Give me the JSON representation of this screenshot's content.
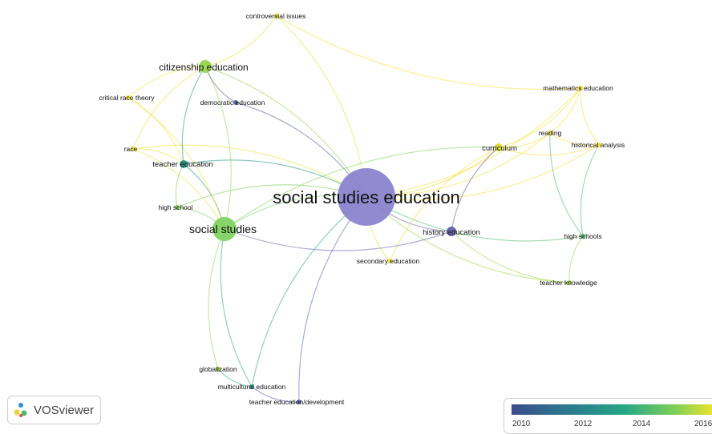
{
  "nodes": [
    {
      "id": "sse",
      "label": "social studies education",
      "color": "#8b84cf",
      "weight": 5
    },
    {
      "id": "ss",
      "label": "social studies",
      "color": "#86d46a",
      "weight": 4
    },
    {
      "id": "ce",
      "label": "citizenship education",
      "color": "#9ad658",
      "weight": 3
    },
    {
      "id": "he",
      "label": "history education",
      "color": "#6a66aa",
      "weight": 2
    },
    {
      "id": "te",
      "label": "teacher education",
      "color": "#2a9a86",
      "weight": 2
    },
    {
      "id": "cur",
      "label": "curriculum",
      "color": "#e3df3c",
      "weight": 2
    },
    {
      "id": "ci",
      "label": "controversial issues",
      "color": "#e8e33a",
      "weight": 1
    },
    {
      "id": "de",
      "label": "democratic education",
      "color": "#5f6aa6",
      "weight": 1
    },
    {
      "id": "crt",
      "label": "critical race theory",
      "color": "#f0e53a",
      "weight": 1
    },
    {
      "id": "race",
      "label": "race",
      "color": "#e9e33a",
      "weight": 1
    },
    {
      "id": "hs",
      "label": "high school",
      "color": "#7dcf58",
      "weight": 1
    },
    {
      "id": "sec",
      "label": "secondary education",
      "color": "#f1e03a",
      "weight": 1
    },
    {
      "id": "me",
      "label": "mathematics education",
      "color": "#f5e33a",
      "weight": 1
    },
    {
      "id": "rd",
      "label": "reading",
      "color": "#f2e43a",
      "weight": 1
    },
    {
      "id": "ha",
      "label": "historical analysis",
      "color": "#f4e13a",
      "weight": 1
    },
    {
      "id": "hss",
      "label": "high schools",
      "color": "#56bd72",
      "weight": 1
    },
    {
      "id": "tk",
      "label": "teacher knowledge",
      "color": "#a3d84a",
      "weight": 1
    },
    {
      "id": "glob",
      "label": "globalization",
      "color": "#9ed65a",
      "weight": 1
    },
    {
      "id": "mce",
      "label": "multicultural education",
      "color": "#31a88a",
      "weight": 1
    },
    {
      "id": "ted",
      "label": "teacher education/development",
      "color": "#5d6ab0",
      "weight": 1
    }
  ],
  "links": [
    [
      "sse",
      "ss"
    ],
    [
      "sse",
      "ce"
    ],
    [
      "sse",
      "he"
    ],
    [
      "sse",
      "te"
    ],
    [
      "sse",
      "cur"
    ],
    [
      "sse",
      "ci"
    ],
    [
      "sse",
      "de"
    ],
    [
      "sse",
      "hs"
    ],
    [
      "sse",
      "sec"
    ],
    [
      "sse",
      "me"
    ],
    [
      "sse",
      "rd"
    ],
    [
      "sse",
      "ha"
    ],
    [
      "sse",
      "hss"
    ],
    [
      "sse",
      "tk"
    ],
    [
      "sse",
      "ted"
    ],
    [
      "sse",
      "mce"
    ],
    [
      "sse",
      "race"
    ],
    [
      "ss",
      "ce"
    ],
    [
      "ss",
      "te"
    ],
    [
      "ss",
      "hs"
    ],
    [
      "ss",
      "glob"
    ],
    [
      "ss",
      "mce"
    ],
    [
      "ss",
      "crt"
    ],
    [
      "ss",
      "race"
    ],
    [
      "ss",
      "he"
    ],
    [
      "ce",
      "ci"
    ],
    [
      "ce",
      "crt"
    ],
    [
      "ce",
      "de"
    ],
    [
      "ce",
      "te"
    ],
    [
      "ce",
      "race"
    ],
    [
      "te",
      "hs"
    ],
    [
      "te",
      "race"
    ],
    [
      "te",
      "crt"
    ],
    [
      "cur",
      "me"
    ],
    [
      "cur",
      "rd"
    ],
    [
      "cur",
      "ha"
    ],
    [
      "cur",
      "he"
    ],
    [
      "cur",
      "sec"
    ],
    [
      "cur",
      "ss"
    ],
    [
      "rd",
      "me"
    ],
    [
      "rd",
      "ha"
    ],
    [
      "me",
      "ha"
    ],
    [
      "ha",
      "hss"
    ],
    [
      "rd",
      "hss"
    ],
    [
      "hss",
      "tk"
    ],
    [
      "he",
      "tk"
    ],
    [
      "glob",
      "mce"
    ],
    [
      "mce",
      "ted"
    ],
    [
      "ci",
      "me"
    ]
  ],
  "footer": {
    "logo_text": "VOSviewer",
    "legend_ticks": [
      "2010",
      "2012",
      "2014",
      "2016"
    ]
  }
}
